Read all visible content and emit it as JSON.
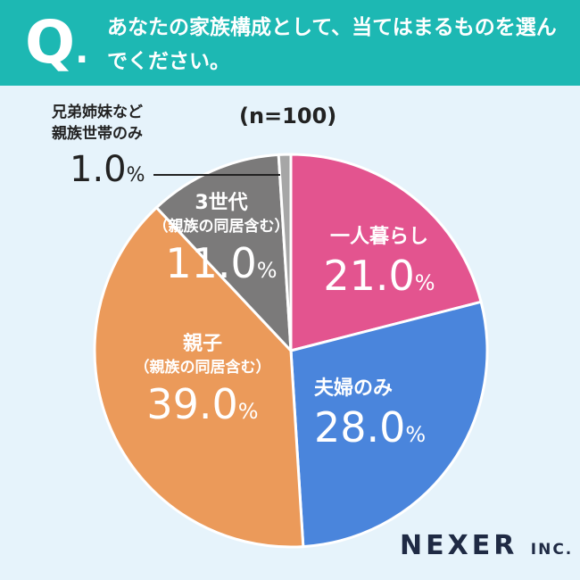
{
  "question": {
    "mark": "Q",
    "dot": ".",
    "text": "あなたの家族構成として、当てはまるものを選んでください。"
  },
  "sample": "(n=100)",
  "chart_data": {
    "type": "pie",
    "start_angle_deg": 0,
    "direction": "clockwise",
    "slices": [
      {
        "label": "一人暮らし",
        "sub": "",
        "value": 21.0,
        "pct_text": "21.0",
        "color": "#e3548f"
      },
      {
        "label": "夫婦のみ",
        "sub": "",
        "value": 28.0,
        "pct_text": "28.0",
        "color": "#4a85dc"
      },
      {
        "label": "親子",
        "sub": "（親族の同居含む）",
        "value": 39.0,
        "pct_text": "39.0",
        "color": "#eb9a5a"
      },
      {
        "label": "3世代",
        "sub": "（親族の同居含む）",
        "value": 11.0,
        "pct_text": "11.0",
        "color": "#7b7a7a"
      },
      {
        "label": "兄弟姉妹など親族世帯のみ",
        "sub": "",
        "value": 1.0,
        "pct_text": "1.0",
        "color": "#a6a6a6"
      }
    ],
    "unit": "%"
  },
  "small_label": {
    "line1": "兄弟姉妹など",
    "line2": "親族世帯のみ"
  },
  "labels": {
    "s0": {
      "name": "一人暮らし",
      "pct": "21.0"
    },
    "s1": {
      "name": "夫婦のみ",
      "pct": "28.0"
    },
    "s2": {
      "name": "親子",
      "sub": "（親族の同居含む）",
      "pct": "39.0"
    },
    "s3": {
      "name": "3世代",
      "sub": "（親族の同居含む）",
      "pct": "11.0"
    },
    "s4": {
      "pct": "1.0"
    },
    "unit": "%"
  },
  "logo": {
    "brand": "NEXER",
    "suffix": "INC."
  }
}
